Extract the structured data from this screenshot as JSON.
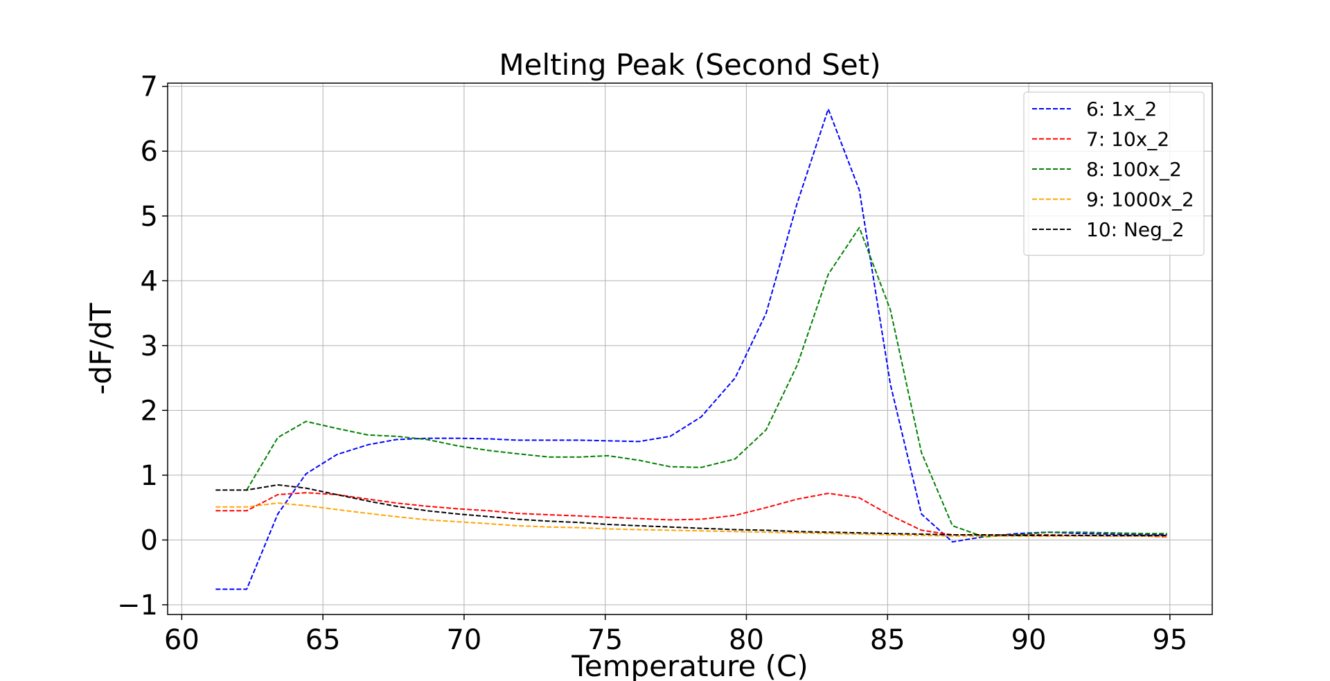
{
  "chart_data": {
    "type": "line",
    "title": "Melting Peak (Second Set)",
    "xlabel": "Temperature (C)",
    "ylabel": "-dF/dT",
    "xlim": [
      59.5,
      96.5
    ],
    "ylim": [
      -1.15,
      7.05
    ],
    "xticks": [
      60,
      65,
      70,
      75,
      80,
      85,
      90,
      95
    ],
    "yticks": [
      -1,
      0,
      1,
      2,
      3,
      4,
      5,
      6,
      7
    ],
    "ytick_labels": [
      "−1",
      "0",
      "1",
      "2",
      "3",
      "4",
      "5",
      "6",
      "7"
    ],
    "grid": true,
    "legend_position": "top-right",
    "line_style": "dashed",
    "x": [
      61.2,
      62.3,
      63.4,
      64.4,
      65.5,
      66.6,
      67.6,
      68.7,
      69.8,
      70.9,
      71.9,
      73.0,
      74.1,
      75.1,
      76.2,
      77.3,
      78.4,
      79.6,
      80.7,
      81.8,
      82.9,
      84.0,
      85.1,
      86.2,
      87.3,
      88.4,
      89.6,
      90.7,
      91.8,
      92.9,
      94.0,
      94.9
    ],
    "series": [
      {
        "name": "6: 1x_2",
        "color": "#0000ff",
        "values": [
          -0.76,
          -0.76,
          0.4,
          1.02,
          1.32,
          1.47,
          1.55,
          1.57,
          1.57,
          1.56,
          1.54,
          1.54,
          1.54,
          1.53,
          1.52,
          1.6,
          1.9,
          2.5,
          3.5,
          5.2,
          6.65,
          5.4,
          2.4,
          0.4,
          -0.03,
          0.05,
          0.1,
          0.12,
          0.1,
          0.09,
          0.08,
          0.08
        ]
      },
      {
        "name": "7: 10x_2",
        "color": "#ff0000",
        "values": [
          0.45,
          0.45,
          0.7,
          0.73,
          0.7,
          0.63,
          0.57,
          0.52,
          0.48,
          0.45,
          0.41,
          0.39,
          0.37,
          0.35,
          0.33,
          0.31,
          0.32,
          0.38,
          0.5,
          0.63,
          0.72,
          0.65,
          0.38,
          0.15,
          0.08,
          0.08,
          0.08,
          0.08,
          0.07,
          0.06,
          0.06,
          0.05
        ]
      },
      {
        "name": "8: 100x_2",
        "color": "#008000",
        "values": [
          null,
          0.77,
          1.58,
          1.83,
          1.72,
          1.62,
          1.6,
          1.55,
          1.45,
          1.38,
          1.33,
          1.28,
          1.28,
          1.3,
          1.23,
          1.13,
          1.12,
          1.25,
          1.7,
          2.7,
          4.1,
          4.82,
          3.55,
          1.35,
          0.22,
          0.05,
          0.08,
          0.12,
          0.12,
          0.11,
          0.1,
          0.1
        ]
      },
      {
        "name": "9: 1000x_2",
        "color": "#ffa500",
        "values": [
          0.51,
          0.51,
          0.57,
          0.53,
          0.47,
          0.41,
          0.36,
          0.31,
          0.28,
          0.25,
          0.22,
          0.2,
          0.19,
          0.17,
          0.16,
          0.15,
          0.14,
          0.13,
          0.12,
          0.11,
          0.1,
          0.09,
          0.08,
          0.07,
          0.06,
          0.06,
          0.06,
          0.06,
          0.06,
          0.06,
          0.06,
          0.06
        ]
      },
      {
        "name": "10: Neg_2",
        "color": "#000000",
        "values": [
          0.77,
          0.77,
          0.85,
          0.8,
          0.7,
          0.6,
          0.52,
          0.45,
          0.4,
          0.36,
          0.32,
          0.29,
          0.27,
          0.24,
          0.22,
          0.2,
          0.18,
          0.16,
          0.15,
          0.13,
          0.12,
          0.11,
          0.1,
          0.09,
          0.08,
          0.08,
          0.07,
          0.07,
          0.07,
          0.07,
          0.07,
          0.07
        ]
      }
    ]
  }
}
